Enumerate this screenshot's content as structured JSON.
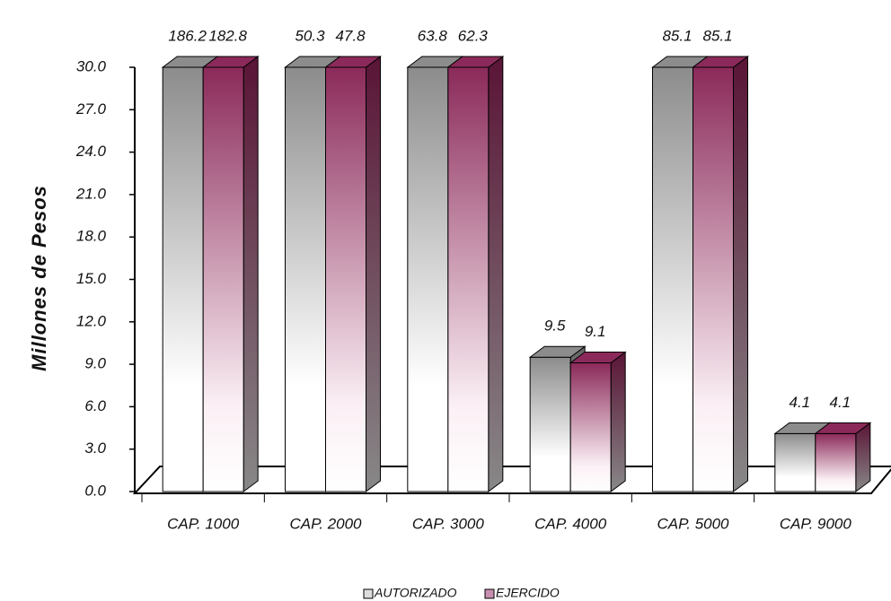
{
  "chart_data": {
    "type": "bar3d",
    "y_axis_label": "Millones de Pesos",
    "categories": [
      "CAP. 1000",
      "CAP. 2000",
      "CAP. 3000",
      "CAP. 4000",
      "CAP. 5000",
      "CAP. 9000"
    ],
    "series": [
      {
        "name": "AUTORIZADO",
        "color": "#8c8c8c",
        "values": [
          186.2,
          50.3,
          63.8,
          9.5,
          85.1,
          4.1
        ]
      },
      {
        "name": "EJERCIDO",
        "color": "#8b2a5a",
        "values": [
          182.8,
          47.8,
          62.3,
          9.1,
          85.1,
          4.1
        ]
      }
    ],
    "ylim": [
      0,
      30
    ],
    "yticks": [
      {
        "value": 0,
        "label": "0.0"
      },
      {
        "value": 3,
        "label": "3.0"
      },
      {
        "value": 6,
        "label": "6.0"
      },
      {
        "value": 9,
        "label": "9.0"
      },
      {
        "value": 12,
        "label": "12.0"
      },
      {
        "value": 15,
        "label": "15.0"
      },
      {
        "value": 18,
        "label": "18.0"
      },
      {
        "value": 21,
        "label": "21.0"
      },
      {
        "value": 24,
        "label": "24.0"
      },
      {
        "value": 27,
        "label": "27.0"
      },
      {
        "value": 30,
        "label": "30.0"
      }
    ],
    "legend": "bottom"
  }
}
